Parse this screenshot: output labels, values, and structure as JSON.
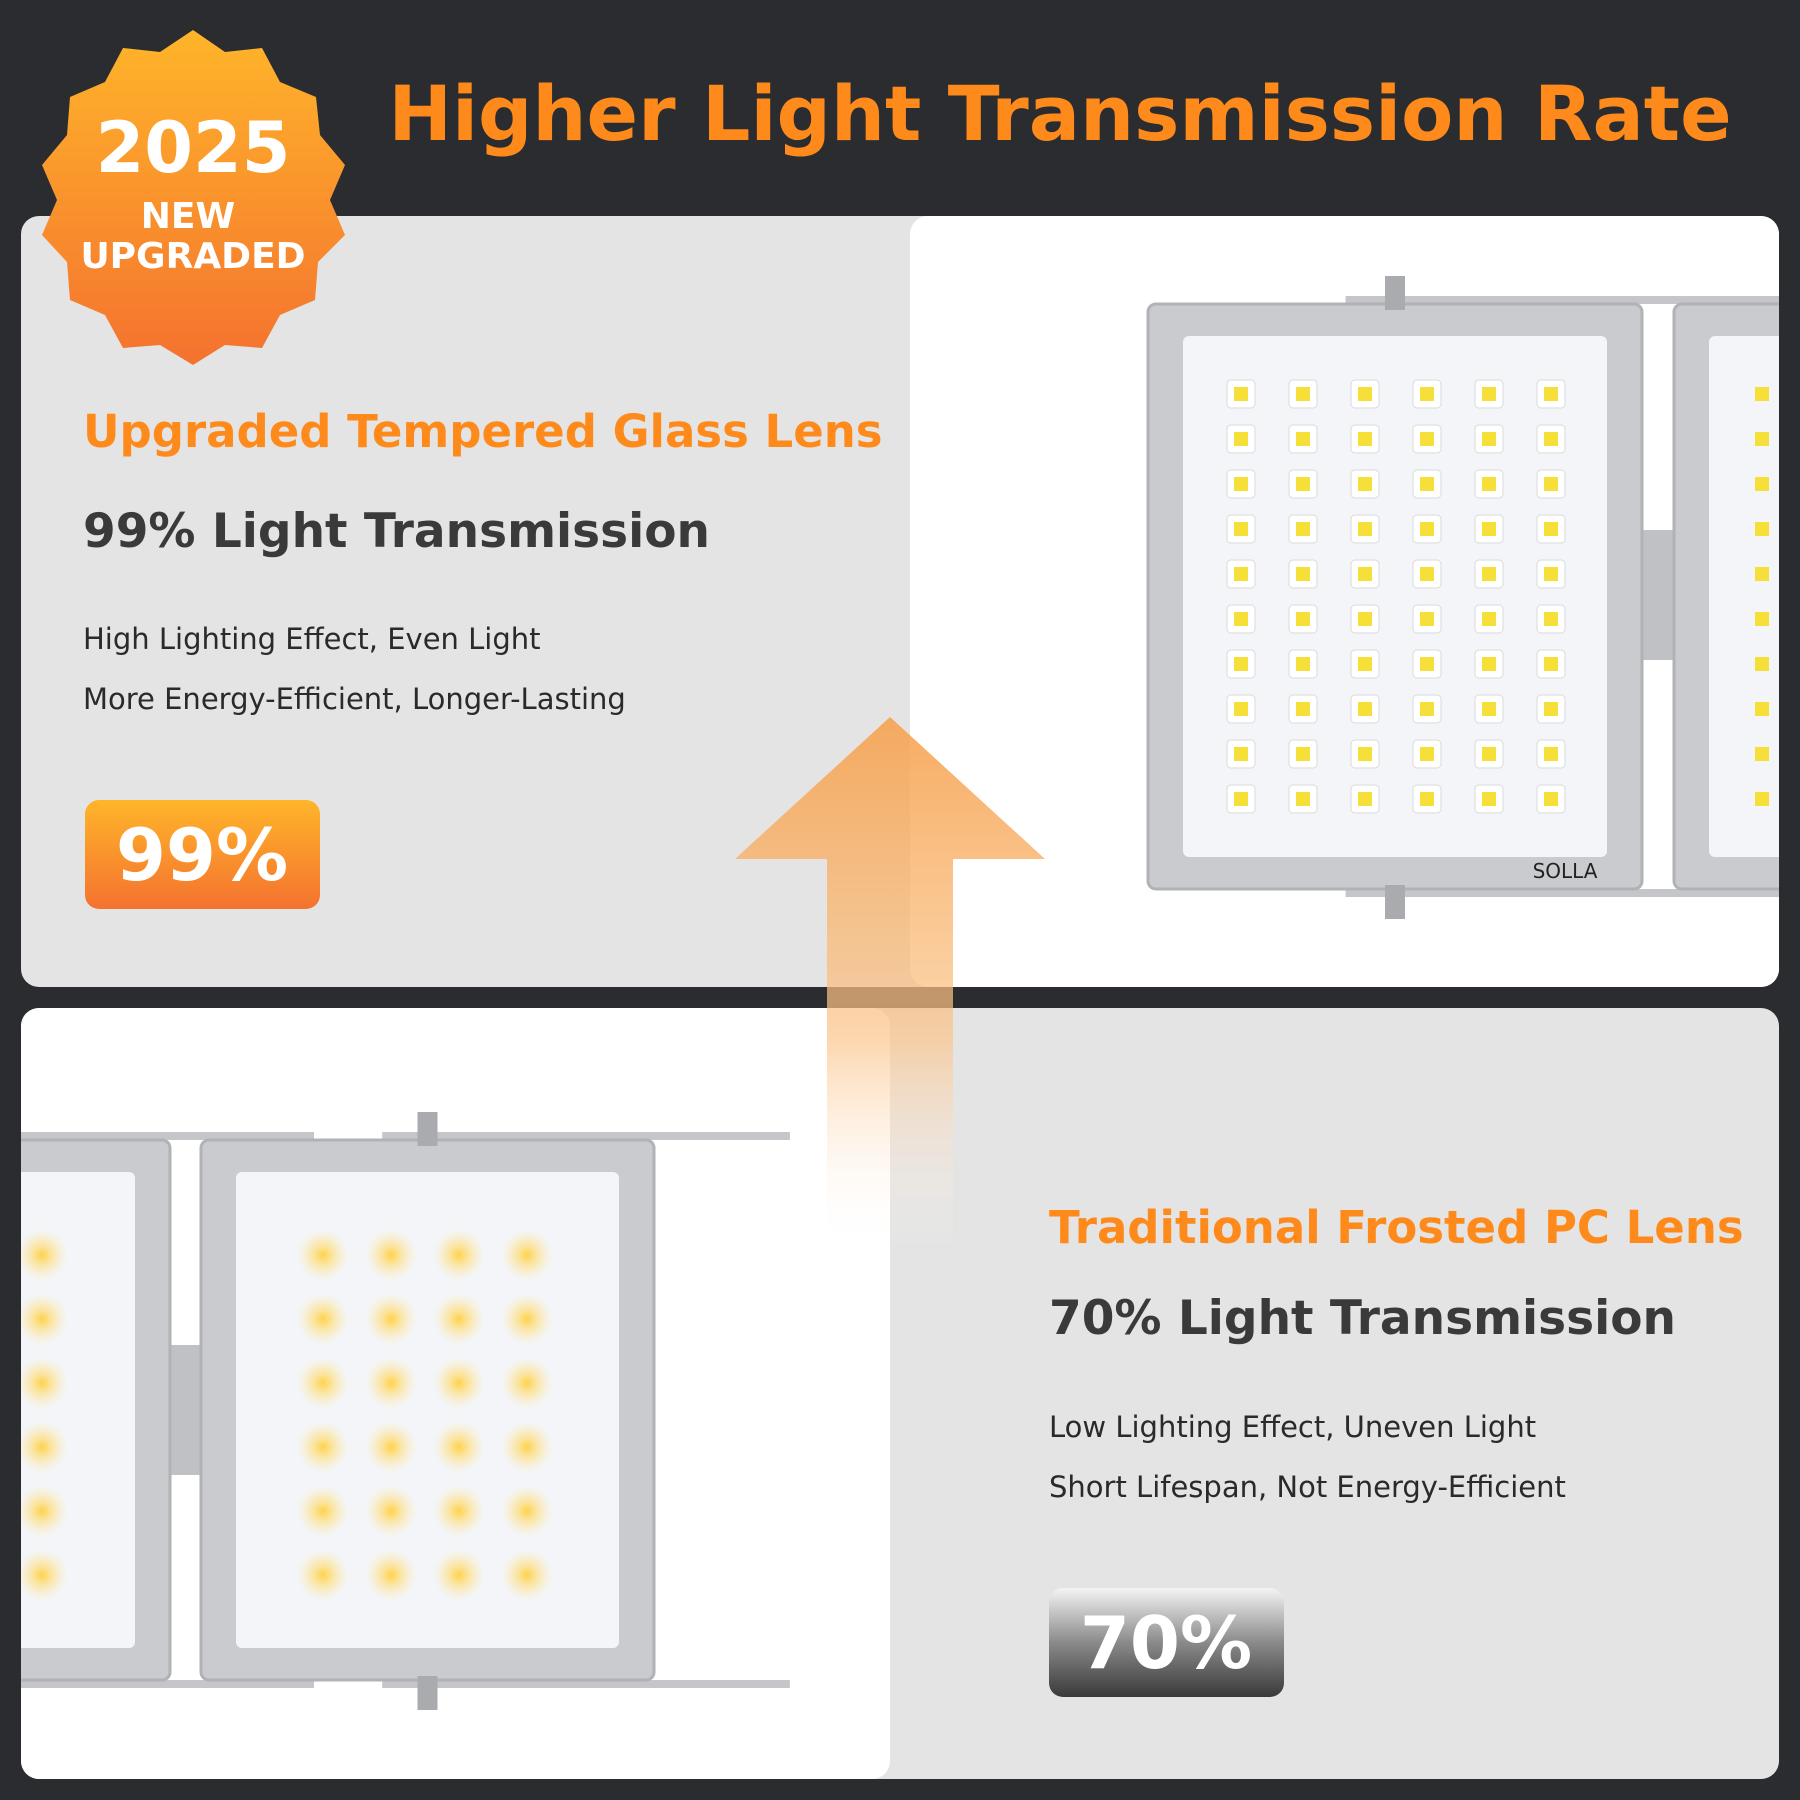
{
  "badge": {
    "year": "2025",
    "line1": "NEW",
    "line2": "UPGRADED"
  },
  "title": "Higher Light Transmission Rate",
  "top_panel": {
    "heading": "Upgraded Tempered Glass Lens",
    "subheading": "99% Light Transmission",
    "features": [
      "High Lighting Effect, Even Light",
      "More Energy-Efficient, Longer-Lasting"
    ],
    "rate_label": "99%",
    "brand": "SOLLA"
  },
  "bottom_panel": {
    "heading": "Traditional Frosted PC Lens",
    "subheading": "70% Light Transmission",
    "features": [
      "Low Lighting Effect, Uneven Light",
      "Short Lifespan, Not Energy-Efficient"
    ],
    "rate_label": "70%"
  }
}
